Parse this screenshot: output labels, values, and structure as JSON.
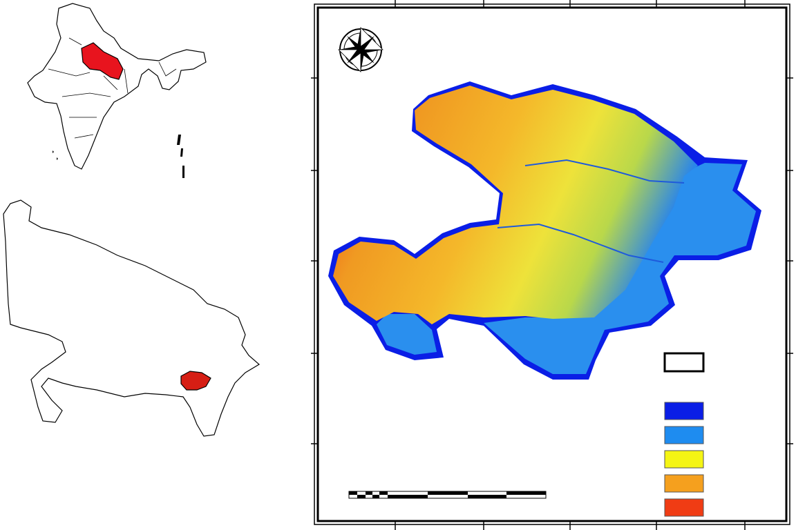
{
  "legend": {
    "swatches": [
      {
        "color": "#0a1ee6"
      },
      {
        "color": "#1e8cf0"
      },
      {
        "color": "#f5f514"
      },
      {
        "color": "#f5a01e"
      },
      {
        "color": "#f03c14"
      }
    ]
  }
}
